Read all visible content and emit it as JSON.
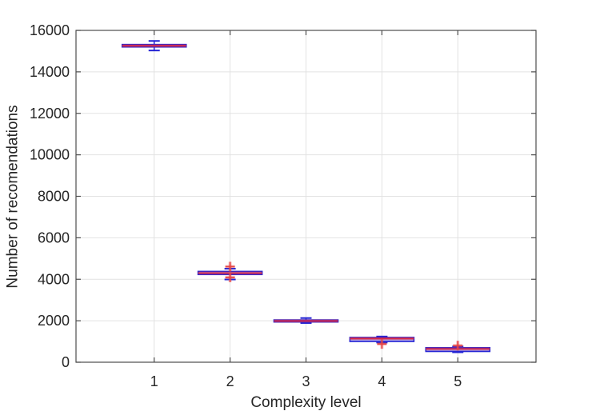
{
  "chart_data": {
    "type": "boxplot",
    "title": "",
    "xlabel": "Complexity level",
    "ylabel": "Number of recomendations",
    "categories": [
      1,
      2,
      3,
      4,
      5
    ],
    "xticklabels": [
      "1",
      "2",
      "3",
      "4",
      "5"
    ],
    "yticks": [
      0,
      2000,
      4000,
      6000,
      8000,
      10000,
      12000,
      14000,
      16000
    ],
    "ylim": [
      0,
      16000
    ],
    "xlim": [
      -0.03,
      6.03
    ],
    "grid": true,
    "legend": false,
    "series": [
      {
        "x": 1,
        "whisker_low": 15030,
        "q1": 15200,
        "median": 15260,
        "q3": 15320,
        "whisker_high": 15490,
        "outliers": []
      },
      {
        "x": 2,
        "whisker_low": 3990,
        "q1": 4230,
        "median": 4300,
        "q3": 4380,
        "whisker_high": 4510,
        "outliers": [
          4610,
          4090
        ]
      },
      {
        "x": 3,
        "whisker_low": 1890,
        "q1": 1940,
        "median": 1990,
        "q3": 2040,
        "whisker_high": 2130,
        "outliers": []
      },
      {
        "x": 4,
        "whisker_low": 950,
        "q1": 1000,
        "median": 1140,
        "q3": 1195,
        "whisker_high": 1240,
        "outliers": [
          880
        ]
      },
      {
        "x": 5,
        "whisker_low": 480,
        "q1": 520,
        "median": 640,
        "q3": 700,
        "whisker_high": 760,
        "outliers": [
          800
        ]
      }
    ],
    "colors": {
      "box": "#2424d4",
      "box_fill": "#4a4ae0",
      "median": "#dc2b47",
      "whisker": "#2424d4",
      "outlier": "#e64545",
      "grid": "#e2e2e2",
      "axis": "#4d4d4d",
      "text": "#262626",
      "background": "#ffffff"
    }
  }
}
